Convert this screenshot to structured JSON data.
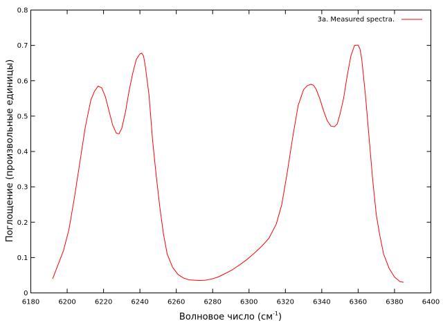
{
  "chart_data": {
    "type": "line",
    "xlabel": "Волновое число (см",
    "xlabel_sup": "-1",
    "xlabel_suffix": ")",
    "ylabel": "Поглощение (произвольные единицы)",
    "xlim": [
      6180,
      6400
    ],
    "ylim": [
      0,
      0.8
    ],
    "xticks": [
      6180,
      6200,
      6220,
      6240,
      6260,
      6280,
      6300,
      6320,
      6340,
      6360,
      6380,
      6400
    ],
    "yticks": [
      0,
      0.1,
      0.2,
      0.3,
      0.4,
      0.5,
      0.6,
      0.7,
      0.8
    ],
    "ytick_labels": [
      "0",
      "0.1",
      "0.2",
      "0.3",
      "0.4",
      "0.5",
      "0.6",
      "0.7",
      "0.8"
    ],
    "grid": false,
    "legend": "top-right",
    "series": [
      {
        "name": "3a. Measured spectra.",
        "color": "#ff0000",
        "x": [
          6192,
          6195,
          6198,
          6201,
          6204,
          6207,
          6210,
          6213,
          6215,
          6217,
          6219,
          6221,
          6223,
          6225,
          6227,
          6228.5,
          6230,
          6232,
          6234,
          6236,
          6238,
          6240,
          6241,
          6242,
          6243,
          6245,
          6247,
          6249,
          6251,
          6253,
          6255,
          6258,
          6261,
          6264,
          6267,
          6270,
          6273,
          6276,
          6278,
          6280,
          6283,
          6287,
          6291,
          6295,
          6299,
          6303,
          6307,
          6311,
          6315,
          6318,
          6321,
          6324,
          6327,
          6330,
          6332,
          6334,
          6335.5,
          6337,
          6339,
          6341,
          6343,
          6345,
          6347,
          6348.5,
          6350,
          6352,
          6354,
          6356,
          6358,
          6360,
          6361,
          6362,
          6364,
          6366,
          6368,
          6370,
          6372,
          6374,
          6377,
          6380,
          6383,
          6385
        ],
        "y": [
          0.04,
          0.08,
          0.12,
          0.18,
          0.27,
          0.37,
          0.47,
          0.545,
          0.57,
          0.585,
          0.58,
          0.555,
          0.515,
          0.475,
          0.452,
          0.45,
          0.465,
          0.51,
          0.57,
          0.62,
          0.66,
          0.676,
          0.678,
          0.67,
          0.64,
          0.56,
          0.43,
          0.33,
          0.24,
          0.165,
          0.11,
          0.072,
          0.052,
          0.042,
          0.037,
          0.036,
          0.035,
          0.036,
          0.038,
          0.04,
          0.045,
          0.055,
          0.066,
          0.08,
          0.095,
          0.113,
          0.132,
          0.155,
          0.195,
          0.25,
          0.34,
          0.44,
          0.53,
          0.575,
          0.586,
          0.59,
          0.587,
          0.575,
          0.548,
          0.515,
          0.487,
          0.472,
          0.47,
          0.478,
          0.505,
          0.55,
          0.615,
          0.67,
          0.7,
          0.701,
          0.69,
          0.66,
          0.56,
          0.44,
          0.32,
          0.22,
          0.16,
          0.11,
          0.07,
          0.045,
          0.032,
          0.03
        ]
      }
    ]
  }
}
